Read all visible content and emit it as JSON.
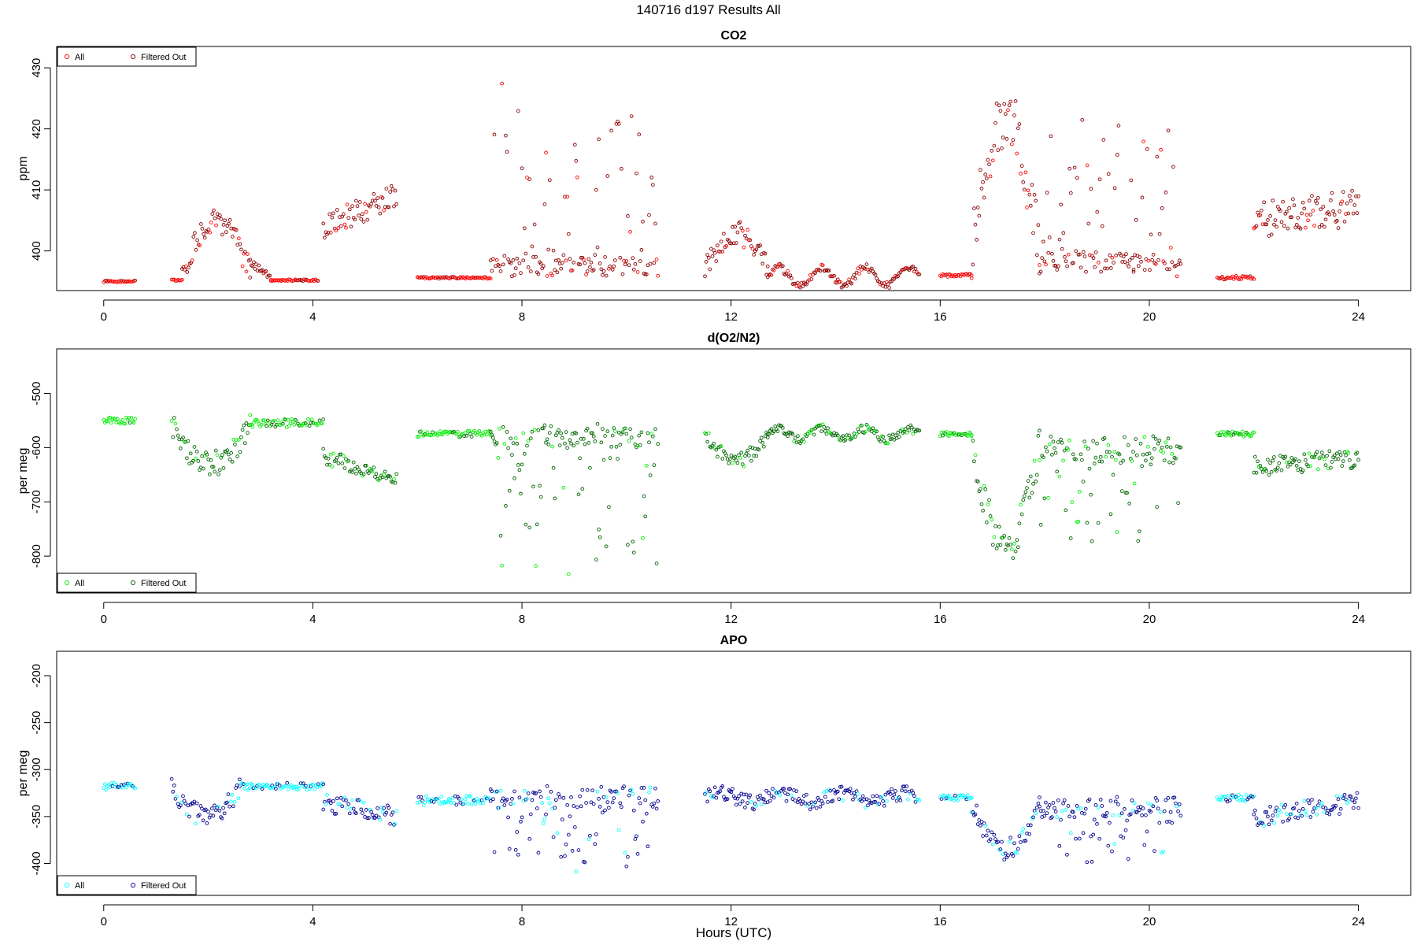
{
  "figure_title": "140716   d197   Results All",
  "x_axis_label": "Hours (UTC)",
  "chart_data": [
    {
      "type": "scatter",
      "title": "CO2",
      "xlabel": "",
      "ylabel": "ppm",
      "xlim": [
        -0.9,
        25.0
      ],
      "ylim": [
        393.5,
        433.5
      ],
      "xticks": [
        0,
        4,
        8,
        12,
        16,
        20,
        24
      ],
      "yticks": [
        400,
        410,
        420,
        430
      ],
      "legend_position": "top-left",
      "series": [
        {
          "name": "All",
          "color": "#ff0000"
        },
        {
          "name": "Filtered Out",
          "color": "#8b0000"
        }
      ],
      "segments": [
        {
          "x": [
            0.0,
            0.6
          ],
          "mode": "flat",
          "base": 395.0,
          "amp": 0.0,
          "spread": 0.3
        },
        {
          "x": [
            1.3,
            1.5
          ],
          "mode": "flat",
          "base": 395.2,
          "amp": 0.0,
          "spread": 0.3
        },
        {
          "x": [
            1.5,
            2.8
          ],
          "mode": "hump",
          "base": 396.5,
          "amp": 8.5,
          "spread": 2.0
        },
        {
          "x": [
            2.8,
            3.2
          ],
          "mode": "decay",
          "base": 398.0,
          "amp": -2.5,
          "spread": 0.8
        },
        {
          "x": [
            3.2,
            4.1
          ],
          "mode": "flat",
          "base": 395.2,
          "amp": 0.0,
          "spread": 0.3
        },
        {
          "x": [
            4.2,
            5.6
          ],
          "mode": "ramp",
          "base": 404.0,
          "amp": 5.0,
          "spread": 2.0
        },
        {
          "x": [
            6.0,
            7.4
          ],
          "mode": "flat",
          "base": 395.6,
          "amp": 0.0,
          "spread": 0.3
        },
        {
          "x": [
            7.4,
            10.6
          ],
          "mode": "spiky",
          "base": 397.0,
          "amp": 30.0,
          "spread": 1.5
        },
        {
          "x": [
            11.5,
            12.7
          ],
          "mode": "hump",
          "base": 397.0,
          "amp": 6.0,
          "spread": 2.0
        },
        {
          "x": [
            12.7,
            15.6
          ],
          "mode": "wavy",
          "base": 395.8,
          "amp": 1.5,
          "spread": 0.6
        },
        {
          "x": [
            16.0,
            16.6
          ],
          "mode": "flat",
          "base": 396.0,
          "amp": 0.0,
          "spread": 0.5
        },
        {
          "x": [
            16.6,
            17.9
          ],
          "mode": "hump",
          "base": 400.0,
          "amp": 22.0,
          "spread": 5.0
        },
        {
          "x": [
            17.9,
            19.7
          ],
          "mode": "spiky",
          "base": 398.0,
          "amp": 24.0,
          "spread": 1.5
        },
        {
          "x": [
            19.7,
            20.6
          ],
          "mode": "spiky",
          "base": 397.0,
          "amp": 22.0,
          "spread": 1.5
        },
        {
          "x": [
            21.3,
            22.0
          ],
          "mode": "flat",
          "base": 395.6,
          "amp": 0.0,
          "spread": 0.6
        },
        {
          "x": [
            22.0,
            24.0
          ],
          "mode": "ramp",
          "base": 405.0,
          "amp": 2.0,
          "spread": 3.0
        }
      ]
    },
    {
      "type": "scatter",
      "title": "d(O2/N2)",
      "xlabel": "",
      "ylabel": "per meg",
      "xlim": [
        -0.9,
        25.0
      ],
      "ylim": [
        -868,
        -418
      ],
      "xticks": [
        0,
        4,
        8,
        12,
        16,
        20,
        24
      ],
      "yticks": [
        -500,
        -600,
        -700,
        -800
      ],
      "legend_position": "bottom-left",
      "series": [
        {
          "name": "All",
          "color": "#00ee00"
        },
        {
          "name": "Filtered Out",
          "color": "#006400"
        }
      ],
      "segments": [
        {
          "x": [
            0.0,
            0.6
          ],
          "mode": "flat",
          "base": -550,
          "amp": 0,
          "spread": 12
        },
        {
          "x": [
            1.3,
            2.8
          ],
          "mode": "hump",
          "base": -560,
          "amp": -70,
          "spread": 25
        },
        {
          "x": [
            2.8,
            4.2
          ],
          "mode": "flat",
          "base": -555,
          "amp": 0,
          "spread": 15
        },
        {
          "x": [
            4.2,
            5.6
          ],
          "mode": "ramp",
          "base": -615,
          "amp": -45,
          "spread": 15
        },
        {
          "x": [
            6.0,
            7.4
          ],
          "mode": "flat",
          "base": -575,
          "amp": 0,
          "spread": 12
        },
        {
          "x": [
            7.4,
            10.6
          ],
          "mode": "spiky",
          "base": -575,
          "amp": -250,
          "spread": 20
        },
        {
          "x": [
            11.5,
            12.7
          ],
          "mode": "hump",
          "base": -575,
          "amp": -50,
          "spread": 15
        },
        {
          "x": [
            12.7,
            15.6
          ],
          "mode": "wavy",
          "base": -575,
          "amp": 10,
          "spread": 8
        },
        {
          "x": [
            16.0,
            16.6
          ],
          "mode": "flat",
          "base": -575,
          "amp": 0,
          "spread": 8
        },
        {
          "x": [
            16.6,
            17.9
          ],
          "mode": "hump",
          "base": -600,
          "amp": -180,
          "spread": 35
        },
        {
          "x": [
            17.9,
            20.6
          ],
          "mode": "spiky",
          "base": -600,
          "amp": -170,
          "spread": 25
        },
        {
          "x": [
            21.3,
            22.0
          ],
          "mode": "flat",
          "base": -575,
          "amp": 0,
          "spread": 10
        },
        {
          "x": [
            22.0,
            24.0
          ],
          "mode": "ramp",
          "base": -635,
          "amp": 15,
          "spread": 18
        }
      ]
    },
    {
      "type": "scatter",
      "title": "APO",
      "xlabel": "Hours (UTC)",
      "ylabel": "per meg",
      "xlim": [
        -0.9,
        25.0
      ],
      "ylim": [
        -434,
        -174
      ],
      "xticks": [
        0,
        4,
        8,
        12,
        16,
        20,
        24
      ],
      "yticks": [
        -200,
        -250,
        -300,
        -350,
        -400
      ],
      "legend_position": "bottom-left",
      "series": [
        {
          "name": "All",
          "color": "#00ffff"
        },
        {
          "name": "Filtered Out",
          "color": "#00008b"
        }
      ],
      "segments": [
        {
          "x": [
            0.0,
            0.6
          ],
          "mode": "flat",
          "base": -318,
          "amp": 0,
          "spread": 8
        },
        {
          "x": [
            1.3,
            2.6
          ],
          "mode": "hump",
          "base": -320,
          "amp": -30,
          "spread": 12
        },
        {
          "x": [
            2.6,
            4.2
          ],
          "mode": "flat",
          "base": -318,
          "amp": 0,
          "spread": 8
        },
        {
          "x": [
            4.2,
            5.6
          ],
          "mode": "ramp",
          "base": -335,
          "amp": -15,
          "spread": 10
        },
        {
          "x": [
            6.0,
            7.4
          ],
          "mode": "flat",
          "base": -333,
          "amp": 0,
          "spread": 10
        },
        {
          "x": [
            7.4,
            10.6
          ],
          "mode": "spiky",
          "base": -328,
          "amp": -75,
          "spread": 12
        },
        {
          "x": [
            11.5,
            15.6
          ],
          "mode": "wavy",
          "base": -330,
          "amp": 5,
          "spread": 8
        },
        {
          "x": [
            16.0,
            16.6
          ],
          "mode": "flat",
          "base": -330,
          "amp": 0,
          "spread": 6
        },
        {
          "x": [
            16.6,
            17.9
          ],
          "mode": "hump",
          "base": -340,
          "amp": -45,
          "spread": 12
        },
        {
          "x": [
            17.9,
            20.6
          ],
          "mode": "spiky",
          "base": -340,
          "amp": -55,
          "spread": 12
        },
        {
          "x": [
            21.3,
            22.0
          ],
          "mode": "flat",
          "base": -330,
          "amp": 0,
          "spread": 8
        },
        {
          "x": [
            22.0,
            24.0
          ],
          "mode": "ramp",
          "base": -352,
          "amp": 18,
          "spread": 10
        }
      ]
    }
  ]
}
